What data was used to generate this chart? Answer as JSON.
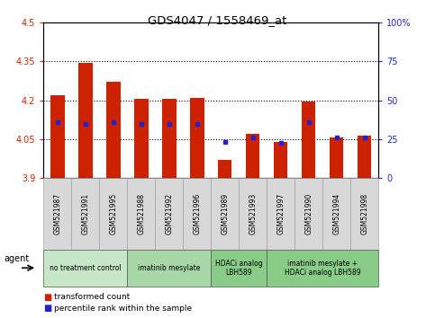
{
  "title": "GDS4047 / 1558469_at",
  "samples": [
    "GSM521987",
    "GSM521991",
    "GSM521995",
    "GSM521988",
    "GSM521992",
    "GSM521996",
    "GSM521989",
    "GSM521993",
    "GSM521997",
    "GSM521990",
    "GSM521994",
    "GSM521998"
  ],
  "bar_values": [
    4.22,
    4.345,
    4.27,
    4.205,
    4.205,
    4.21,
    3.97,
    4.07,
    4.04,
    4.195,
    4.055,
    4.065
  ],
  "dot_values": [
    4.115,
    4.11,
    4.115,
    4.11,
    4.11,
    4.11,
    4.04,
    4.055,
    4.035,
    4.115,
    4.055,
    4.055
  ],
  "baseline": 3.9,
  "ylim_left": [
    3.9,
    4.5
  ],
  "yticks_left": [
    3.9,
    4.05,
    4.2,
    4.35,
    4.5
  ],
  "ytick_labels_left": [
    "3.9",
    "4.05",
    "4.2",
    "4.35",
    "4.5"
  ],
  "ylim_right": [
    0,
    100
  ],
  "yticks_right": [
    0,
    25,
    50,
    75,
    100
  ],
  "ytick_labels_right": [
    "0",
    "25",
    "50",
    "75",
    "100%"
  ],
  "hlines": [
    4.05,
    4.2,
    4.35
  ],
  "bar_color": "#cc2200",
  "dot_color": "#2222cc",
  "groups": [
    {
      "label": "no treatment control",
      "start": 0,
      "end": 3,
      "color": "#c8e6c8"
    },
    {
      "label": "imatinib mesylate",
      "start": 3,
      "end": 6,
      "color": "#a8d8a8"
    },
    {
      "label": "HDACi analog\nLBH589",
      "start": 6,
      "end": 8,
      "color": "#88cc88"
    },
    {
      "label": "imatinib mesylate +\nHDACi analog LBH589",
      "start": 8,
      "end": 12,
      "color": "#88cc88"
    }
  ],
  "legend_entries": [
    {
      "label": "transformed count",
      "color": "#cc2200"
    },
    {
      "label": "percentile rank within the sample",
      "color": "#2222cc"
    }
  ],
  "xlabel_agent": "agent"
}
